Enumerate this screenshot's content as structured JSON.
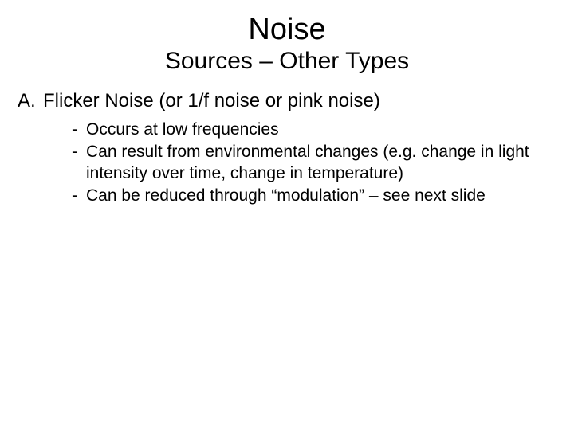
{
  "title": "Noise",
  "subtitle": "Sources – Other Types",
  "section": {
    "marker": "A.",
    "heading": "Flicker Noise (or 1/f noise or pink noise)"
  },
  "bullets": [
    "Occurs at low frequencies",
    "Can result from environmental changes (e.g. change in light intensity over time, change in temperature)",
    "Can be reduced through “modulation” – see next slide"
  ],
  "dash": "-",
  "colors": {
    "background": "#ffffff",
    "text": "#000000"
  },
  "typography": {
    "title_fontsize": 38,
    "subtitle_fontsize": 30,
    "level_a_fontsize": 24,
    "level_b_fontsize": 21,
    "font_family": "Verdana"
  }
}
